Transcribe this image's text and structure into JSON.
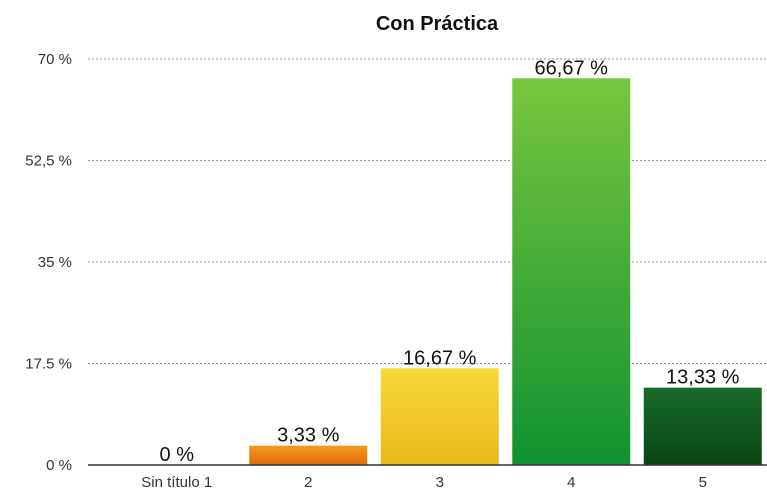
{
  "chart_data": {
    "type": "bar",
    "title": "Con Práctica",
    "xlabel": "",
    "ylabel": "",
    "categories": [
      "Sin título 1",
      "2",
      "3",
      "4",
      "5"
    ],
    "values": [
      0,
      3.33,
      16.67,
      66.67,
      13.33
    ],
    "data_labels": [
      "0 %",
      "3,33 %",
      "16,67 %",
      "66,67 %",
      "13,33 %"
    ],
    "yticks": [
      0,
      17.5,
      35,
      52.5,
      70
    ],
    "ytick_labels": [
      "0 %",
      "17.5 %",
      "35 %",
      "52,5 %",
      "70 %"
    ],
    "ylim": [
      0,
      70
    ],
    "grid": true,
    "legend": "none",
    "colors": [
      [
        "#ffffff",
        "#ffffff"
      ],
      [
        "#f59a1c",
        "#e06a0a"
      ],
      [
        "#f5d83a",
        "#e9b91a"
      ],
      [
        "#78c63e",
        "#119231"
      ],
      [
        "#176b2a",
        "#0b4414"
      ]
    ]
  }
}
